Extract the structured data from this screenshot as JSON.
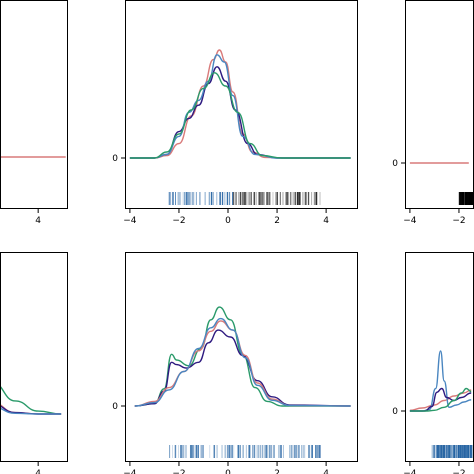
{
  "chart_data": [
    {
      "panel": "top-left",
      "type": "line",
      "xlim": [
        -4.2,
        5.3
      ],
      "x_ticks": [],
      "x_tick_labels": [
        "4"
      ],
      "x_tick_label_values": [
        4
      ],
      "y_ticks": [],
      "ylim": [
        -0.07,
        1.0
      ],
      "series": [
        {
          "color": "#d97a7a",
          "points": [
            [
              -4.2,
              0.0
            ],
            [
              5.2,
              0.0
            ]
          ]
        }
      ],
      "rug": {
        "color": "#000000",
        "range": [
          -4.2,
          1.9
        ],
        "density_peak": -3.6
      }
    },
    {
      "panel": "top-center",
      "type": "line",
      "xlim": [
        -4.2,
        5.3
      ],
      "x_tick_labels": [
        "−4",
        "−2",
        "0",
        "2",
        "4"
      ],
      "x_tick_label_values": [
        -4,
        -2,
        0,
        2,
        4
      ],
      "y_tick_labels": [
        "0"
      ],
      "y_tick_label_values": [
        0
      ],
      "ylim": [
        -0.07,
        1.0
      ],
      "series": [
        {
          "color": "#d97a7a",
          "points": [
            [
              -4,
              0.0
            ],
            [
              -3,
              0.0
            ],
            [
              -2.5,
              0.02
            ],
            [
              -2,
              0.12
            ],
            [
              -1.5,
              0.35
            ],
            [
              -1,
              0.6
            ],
            [
              -0.6,
              0.82
            ],
            [
              -0.35,
              0.9
            ],
            [
              -0.1,
              0.8
            ],
            [
              0.2,
              0.55
            ],
            [
              0.6,
              0.2
            ],
            [
              1.0,
              0.05
            ],
            [
              1.5,
              0.005
            ],
            [
              2.5,
              0.0
            ],
            [
              5,
              0.0
            ]
          ]
        },
        {
          "color": "#2e1a80",
          "points": [
            [
              -4,
              0.0
            ],
            [
              -3,
              0.0
            ],
            [
              -2.5,
              0.03
            ],
            [
              -2,
              0.22
            ],
            [
              -1.6,
              0.33
            ],
            [
              -1.2,
              0.44
            ],
            [
              -0.8,
              0.62
            ],
            [
              -0.45,
              0.76
            ],
            [
              -0.1,
              0.64
            ],
            [
              0.3,
              0.4
            ],
            [
              0.8,
              0.12
            ],
            [
              1.2,
              0.03
            ],
            [
              2,
              0.0
            ],
            [
              5,
              0.0
            ]
          ]
        },
        {
          "color": "#4a86c0",
          "points": [
            [
              -4,
              0.0
            ],
            [
              -3,
              0.0
            ],
            [
              -2.5,
              0.03
            ],
            [
              -2,
              0.18
            ],
            [
              -1.6,
              0.38
            ],
            [
              -1.2,
              0.48
            ],
            [
              -0.8,
              0.64
            ],
            [
              -0.45,
              0.86
            ],
            [
              -0.15,
              0.8
            ],
            [
              0.2,
              0.52
            ],
            [
              0.6,
              0.18
            ],
            [
              1.1,
              0.03
            ],
            [
              2,
              0.0
            ],
            [
              5,
              0.0
            ]
          ]
        },
        {
          "color": "#2a9a6a",
          "points": [
            [
              -4,
              0.0
            ],
            [
              -3,
              0.0
            ],
            [
              -2.5,
              0.05
            ],
            [
              -2,
              0.2
            ],
            [
              -1.5,
              0.4
            ],
            [
              -1,
              0.58
            ],
            [
              -0.55,
              0.71
            ],
            [
              -0.1,
              0.6
            ],
            [
              0.4,
              0.38
            ],
            [
              0.9,
              0.12
            ],
            [
              1.4,
              0.02
            ],
            [
              2.2,
              0.0
            ],
            [
              5,
              0.0
            ]
          ]
        }
      ],
      "rug": {
        "colors": [
          "#1f5fa0",
          "#000000"
        ],
        "range": [
          -2.4,
          3.8
        ]
      }
    },
    {
      "panel": "top-right",
      "type": "line",
      "xlim": [
        -4.2,
        5.3
      ],
      "x_tick_labels": [
        "−4",
        "−2"
      ],
      "x_tick_label_values": [
        -4,
        -2
      ],
      "y_tick_labels": [
        "0"
      ],
      "y_tick_label_values": [
        0
      ],
      "ylim": [
        -0.07,
        1.0
      ],
      "series": [
        {
          "color": "#d97a7a",
          "points": [
            [
              -4,
              0.0
            ],
            [
              -1.6,
              0.0
            ]
          ]
        }
      ],
      "rug": {
        "color": "#000000",
        "range": [
          -2.0,
          -1.4
        ]
      }
    },
    {
      "panel": "bottom-left",
      "type": "line",
      "xlim": [
        -4.2,
        5.3
      ],
      "x_tick_labels": [
        "4"
      ],
      "x_tick_label_values": [
        4
      ],
      "y_ticks": [],
      "ylim": [
        -0.07,
        1.0
      ],
      "series": [
        {
          "color": "#2a9a6a",
          "points": [
            [
              -3.2,
              0.2
            ],
            [
              -2,
              0.35
            ],
            [
              -1,
              0.5
            ],
            [
              0,
              0.48
            ],
            [
              1,
              0.38
            ],
            [
              2,
              0.22
            ],
            [
              3,
              0.09
            ],
            [
              4,
              0.02
            ],
            [
              5,
              0.0
            ]
          ]
        },
        {
          "color": "#d97a7a",
          "points": [
            [
              -3.2,
              0.2
            ],
            [
              -2,
              0.35
            ],
            [
              -1,
              0.5
            ],
            [
              0,
              0.42
            ],
            [
              1,
              0.26
            ],
            [
              2,
              0.08
            ],
            [
              3,
              0.01
            ],
            [
              4,
              0.0
            ],
            [
              5,
              0.0
            ]
          ]
        },
        {
          "color": "#2e1a80",
          "points": [
            [
              -3.2,
              0.18
            ],
            [
              -2,
              0.33
            ],
            [
              -1,
              0.48
            ],
            [
              0,
              0.4
            ],
            [
              1,
              0.24
            ],
            [
              2,
              0.07
            ],
            [
              3,
              0.01
            ],
            [
              4,
              0.0
            ],
            [
              5,
              0.0
            ]
          ]
        },
        {
          "color": "#4a86c0",
          "points": [
            [
              -3.2,
              0.18
            ],
            [
              -2,
              0.3
            ],
            [
              -1,
              0.46
            ],
            [
              0,
              0.38
            ],
            [
              1,
              0.2
            ],
            [
              2,
              0.05
            ],
            [
              3,
              0.005
            ],
            [
              4,
              0.0
            ],
            [
              5,
              0.0
            ]
          ]
        }
      ],
      "rug": {
        "color": "#1f5fa0",
        "range": [
          -4.2,
          0.3
        ]
      }
    },
    {
      "panel": "bottom-center",
      "type": "line",
      "xlim": [
        -4.2,
        5.3
      ],
      "x_tick_labels": [
        "−4",
        "−2",
        "0",
        "2",
        "4"
      ],
      "x_tick_label_values": [
        -4,
        -2,
        0,
        2,
        4
      ],
      "y_tick_labels": [
        "0"
      ],
      "y_tick_label_values": [
        0
      ],
      "ylim": [
        -0.07,
        1.0
      ],
      "series": [
        {
          "color": "#2a9a6a",
          "points": [
            [
              -3.8,
              0.0
            ],
            [
              -3,
              0.02
            ],
            [
              -2.6,
              0.15
            ],
            [
              -2.3,
              0.45
            ],
            [
              -2.1,
              0.4
            ],
            [
              -1.6,
              0.35
            ],
            [
              -1.1,
              0.5
            ],
            [
              -0.7,
              0.75
            ],
            [
              -0.35,
              0.86
            ],
            [
              0.1,
              0.75
            ],
            [
              0.6,
              0.45
            ],
            [
              1.1,
              0.16
            ],
            [
              1.6,
              0.04
            ],
            [
              2.2,
              0.0
            ],
            [
              5,
              0.0
            ]
          ]
        },
        {
          "color": "#2e1a80",
          "points": [
            [
              -3.8,
              0.0
            ],
            [
              -3,
              0.02
            ],
            [
              -2.6,
              0.13
            ],
            [
              -2.3,
              0.38
            ],
            [
              -2.1,
              0.36
            ],
            [
              -1.7,
              0.33
            ],
            [
              -1.2,
              0.38
            ],
            [
              -0.8,
              0.55
            ],
            [
              -0.4,
              0.66
            ],
            [
              0.1,
              0.6
            ],
            [
              0.6,
              0.44
            ],
            [
              1.2,
              0.22
            ],
            [
              1.8,
              0.08
            ],
            [
              2.5,
              0.01
            ],
            [
              5,
              0.0
            ]
          ]
        },
        {
          "color": "#d97a7a",
          "points": [
            [
              -3.8,
              0.0
            ],
            [
              -3,
              0.04
            ],
            [
              -2.4,
              0.16
            ],
            [
              -1.8,
              0.3
            ],
            [
              -1.2,
              0.48
            ],
            [
              -0.7,
              0.65
            ],
            [
              -0.3,
              0.74
            ],
            [
              0.2,
              0.66
            ],
            [
              0.7,
              0.44
            ],
            [
              1.2,
              0.2
            ],
            [
              1.8,
              0.06
            ],
            [
              2.5,
              0.005
            ],
            [
              5,
              0.0
            ]
          ]
        },
        {
          "color": "#4a86c0",
          "points": [
            [
              -3.8,
              0.0
            ],
            [
              -3,
              0.03
            ],
            [
              -2.4,
              0.14
            ],
            [
              -1.8,
              0.3
            ],
            [
              -1.2,
              0.5
            ],
            [
              -0.7,
              0.68
            ],
            [
              -0.3,
              0.76
            ],
            [
              0.2,
              0.66
            ],
            [
              0.7,
              0.42
            ],
            [
              1.2,
              0.18
            ],
            [
              1.8,
              0.05
            ],
            [
              2.5,
              0.005
            ],
            [
              5,
              0.0
            ]
          ]
        }
      ],
      "rug": {
        "color": "#1f5fa0",
        "range": [
          -2.4,
          3.8
        ]
      }
    },
    {
      "panel": "bottom-right",
      "type": "line",
      "xlim": [
        -4.2,
        5.3
      ],
      "x_tick_labels": [
        "−4",
        "−2"
      ],
      "x_tick_label_values": [
        -4,
        -2
      ],
      "y_tick_labels": [
        "0"
      ],
      "y_tick_label_values": [
        0
      ],
      "ylim": [
        -0.07,
        1.0
      ],
      "series": [
        {
          "color": "#d97a7a",
          "points": [
            [
              -4,
              0.01
            ],
            [
              -3.5,
              0.04
            ],
            [
              -3,
              0.08
            ],
            [
              -2.6,
              0.14
            ],
            [
              -2.2,
              0.2
            ],
            [
              -1.8,
              0.24
            ],
            [
              -1.5,
              0.28
            ]
          ]
        },
        {
          "color": "#4a86c0",
          "points": [
            [
              -4,
              0.0
            ],
            [
              -3.5,
              0.0
            ],
            [
              -3.2,
              0.02
            ],
            [
              -2.95,
              0.3
            ],
            [
              -2.75,
              0.8
            ],
            [
              -2.6,
              0.4
            ],
            [
              -2.4,
              0.05
            ],
            [
              -2.1,
              0.08
            ],
            [
              -1.8,
              0.12
            ],
            [
              -1.5,
              0.15
            ]
          ]
        },
        {
          "color": "#2e1a80",
          "points": [
            [
              -4,
              0.0
            ],
            [
              -3.4,
              0.0
            ],
            [
              -3.1,
              0.06
            ],
            [
              -2.9,
              0.25
            ],
            [
              -2.7,
              0.3
            ],
            [
              -2.5,
              0.18
            ],
            [
              -2.2,
              0.14
            ],
            [
              -1.9,
              0.18
            ],
            [
              -1.5,
              0.24
            ]
          ]
        },
        {
          "color": "#2a9a6a",
          "points": [
            [
              -4,
              0.0
            ],
            [
              -3.3,
              0.0
            ],
            [
              -3.0,
              0.01
            ],
            [
              -2.6,
              0.05
            ],
            [
              -2.2,
              0.14
            ],
            [
              -1.9,
              0.24
            ],
            [
              -1.7,
              0.3
            ],
            [
              -1.5,
              0.26
            ]
          ]
        }
      ],
      "rug": {
        "color": "#1f5fa0",
        "range": [
          -3.1,
          -1.4
        ]
      }
    }
  ]
}
